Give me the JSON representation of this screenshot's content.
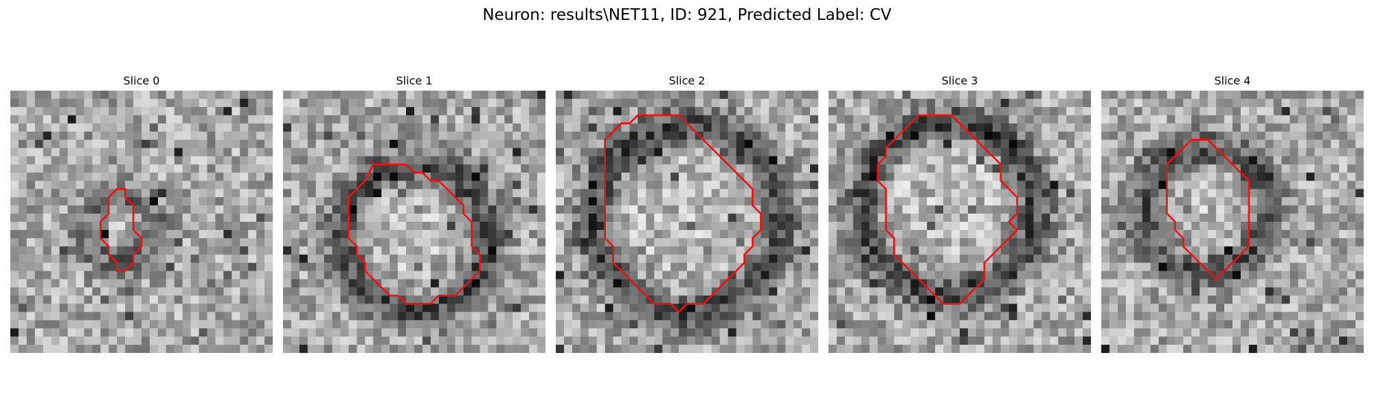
{
  "figure": {
    "title": "Neuron: results\\NET11, ID: 921, Predicted Label: CV"
  },
  "colors": {
    "contour": "#ee1111",
    "background": "#ffffff"
  },
  "slices": [
    {
      "title": "Slice 0",
      "seed": 11,
      "ring_intensity": 0.55
    },
    {
      "title": "Slice 1",
      "seed": 23,
      "ring_intensity": 0.85
    },
    {
      "title": "Slice 2",
      "seed": 37,
      "ring_intensity": 0.9
    },
    {
      "title": "Slice 3",
      "seed": 41,
      "ring_intensity": 0.9
    },
    {
      "title": "Slice 4",
      "seed": 53,
      "ring_intensity": 0.75
    }
  ]
}
